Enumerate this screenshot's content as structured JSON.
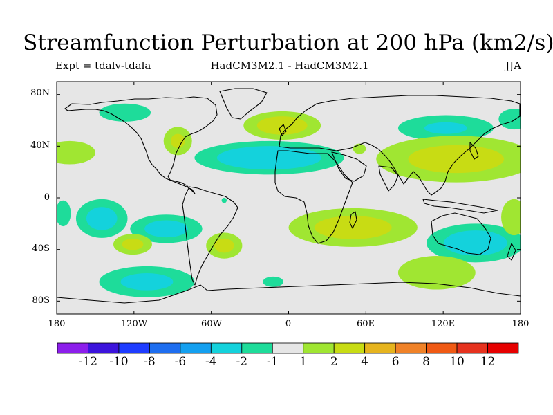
{
  "title": "Streamfunction Perturbation at 200 hPa (km2/s)",
  "subtitle_left": "Expt = tdalv-tdala",
  "subtitle_center": "HadCM3M2.1 - HadCM3M2.1",
  "subtitle_right": "JJA",
  "chart_data": {
    "type": "heatmap",
    "title": "Streamfunction Perturbation at 200 hPa (km2/s)",
    "projection": "cylindrical equidistant",
    "xlim": [
      -180,
      180
    ],
    "ylim": [
      -90,
      90
    ],
    "lon_ticks": [
      {
        "value": -180,
        "label": "180"
      },
      {
        "value": -120,
        "label": "120W"
      },
      {
        "value": -60,
        "label": "60W"
      },
      {
        "value": 0,
        "label": "0"
      },
      {
        "value": 60,
        "label": "60E"
      },
      {
        "value": 120,
        "label": "120E"
      },
      {
        "value": 180,
        "label": "180"
      }
    ],
    "lat_ticks": [
      {
        "value": 80,
        "label": "80N"
      },
      {
        "value": 40,
        "label": "40N"
      },
      {
        "value": 0,
        "label": "0"
      },
      {
        "value": -40,
        "label": "40S"
      },
      {
        "value": -80,
        "label": "80S"
      }
    ],
    "colorbar": {
      "colors": [
        "#8c1eeb",
        "#3c14dc",
        "#1e3cff",
        "#1e6ef0",
        "#14a0f0",
        "#14d2dc",
        "#1edc9a",
        "#e6e6e6",
        "#a0e632",
        "#c8dc14",
        "#e6b41e",
        "#f08228",
        "#f05a14",
        "#e6321e",
        "#e60000"
      ],
      "labels": [
        "-12",
        "-10",
        "-8",
        "-6",
        "-4",
        "-2",
        "-1",
        "1",
        "2",
        "4",
        "6",
        "8",
        "10",
        "12"
      ]
    },
    "features": [
      {
        "name": "north-pacific-arctic-low",
        "lon": -127,
        "lat": 66,
        "rlon": 20,
        "rlat": 7,
        "levels": [
          {
            "color": "#1edc9a",
            "scale": 1.0
          }
        ]
      },
      {
        "name": "north-america-high",
        "lon": -86,
        "lat": 44,
        "rlon": 11,
        "rlat": 11,
        "levels": [
          {
            "color": "#a0e632",
            "scale": 1.0
          },
          {
            "color": "#c8dc14",
            "scale": 0.5
          }
        ]
      },
      {
        "name": "east-pacific-high",
        "lon": -170,
        "lat": 35,
        "rlon": 20,
        "rlat": 9,
        "levels": [
          {
            "color": "#a0e632",
            "scale": 1.0
          }
        ]
      },
      {
        "name": "north-atlantic-high",
        "lon": -5,
        "lat": 56,
        "rlon": 30,
        "rlat": 11,
        "levels": [
          {
            "color": "#a0e632",
            "scale": 1.0
          },
          {
            "color": "#c8dc14",
            "scale": 0.65
          }
        ]
      },
      {
        "name": "atlantic-mediterranean-low",
        "lon": -15,
        "lat": 31,
        "rlon": 58,
        "rlat": 13,
        "levels": [
          {
            "color": "#1edc9a",
            "scale": 1.0
          },
          {
            "color": "#14d2dc",
            "scale": 0.7
          }
        ]
      },
      {
        "name": "black-sea-high",
        "lon": 55,
        "lat": 38,
        "rlon": 5,
        "rlat": 4,
        "levels": [
          {
            "color": "#a0e632",
            "scale": 1.0
          }
        ]
      },
      {
        "name": "siberia-low",
        "lon": 122,
        "lat": 54,
        "rlon": 37,
        "rlat": 10,
        "levels": [
          {
            "color": "#1edc9a",
            "scale": 1.0
          },
          {
            "color": "#14d2dc",
            "scale": 0.45
          }
        ]
      },
      {
        "name": "east-asia-north-pacific-high",
        "lon": 130,
        "lat": 30,
        "rlon": 62,
        "rlat": 18,
        "levels": [
          {
            "color": "#a0e632",
            "scale": 1.0
          },
          {
            "color": "#c8dc14",
            "scale": 0.6
          }
        ]
      },
      {
        "name": "east-siberia-low",
        "lon": 175,
        "lat": 61,
        "rlon": 12,
        "rlat": 8,
        "levels": [
          {
            "color": "#1edc9a",
            "scale": 1.0
          }
        ]
      },
      {
        "name": "south-pacific-low",
        "lon": -145,
        "lat": -16,
        "rlon": 20,
        "rlat": 15,
        "levels": [
          {
            "color": "#1edc9a",
            "scale": 1.0
          },
          {
            "color": "#14d2dc",
            "scale": 0.6
          }
        ]
      },
      {
        "name": "date-line-tropical-low",
        "lon": -175,
        "lat": -12,
        "rlon": 6,
        "rlat": 10,
        "levels": [
          {
            "color": "#1edc9a",
            "scale": 1.0
          }
        ]
      },
      {
        "name": "south-east-pacific-low",
        "lon": -95,
        "lat": -24,
        "rlon": 28,
        "rlat": 11,
        "levels": [
          {
            "color": "#1edc9a",
            "scale": 1.0
          },
          {
            "color": "#14d2dc",
            "scale": 0.6
          }
        ]
      },
      {
        "name": "south-pacific-high",
        "lon": -121,
        "lat": -36,
        "rlon": 15,
        "rlat": 8,
        "levels": [
          {
            "color": "#a0e632",
            "scale": 1.0
          },
          {
            "color": "#c8dc14",
            "scale": 0.55
          }
        ]
      },
      {
        "name": "south-atlantic-high",
        "lon": -50,
        "lat": -37,
        "rlon": 14,
        "rlat": 10,
        "levels": [
          {
            "color": "#a0e632",
            "scale": 1.0
          },
          {
            "color": "#c8dc14",
            "scale": 0.55
          }
        ]
      },
      {
        "name": "southern-ocean-low",
        "lon": -110,
        "lat": -65,
        "rlon": 37,
        "rlat": 12,
        "levels": [
          {
            "color": "#1edc9a",
            "scale": 1.0
          },
          {
            "color": "#14d2dc",
            "scale": 0.55
          }
        ]
      },
      {
        "name": "south-africa-indian-high",
        "lon": 50,
        "lat": -23,
        "rlon": 50,
        "rlat": 15,
        "levels": [
          {
            "color": "#a0e632",
            "scale": 1.0
          },
          {
            "color": "#c8dc14",
            "scale": 0.6
          }
        ]
      },
      {
        "name": "south-atlantic-small-low",
        "lon": -12,
        "lat": -65,
        "rlon": 8,
        "rlat": 4,
        "levels": [
          {
            "color": "#1edc9a",
            "scale": 1.0
          }
        ]
      },
      {
        "name": "australia-low",
        "lon": 145,
        "lat": -35,
        "rlon": 38,
        "rlat": 15,
        "levels": [
          {
            "color": "#1edc9a",
            "scale": 1.0
          },
          {
            "color": "#14d2dc",
            "scale": 0.65
          }
        ]
      },
      {
        "name": "southern-indian-high",
        "lon": 115,
        "lat": -58,
        "rlon": 30,
        "rlat": 13,
        "levels": [
          {
            "color": "#a0e632",
            "scale": 1.0
          }
        ]
      },
      {
        "name": "west-pacific-high",
        "lon": 175,
        "lat": -15,
        "rlon": 10,
        "rlat": 14,
        "levels": [
          {
            "color": "#a0e632",
            "scale": 1.0
          }
        ]
      },
      {
        "name": "atlantic-equatorial-low",
        "lon": -50,
        "lat": -2,
        "rlon": 2,
        "rlat": 2,
        "levels": [
          {
            "color": "#1edc9a",
            "scale": 1.0
          }
        ]
      }
    ]
  }
}
